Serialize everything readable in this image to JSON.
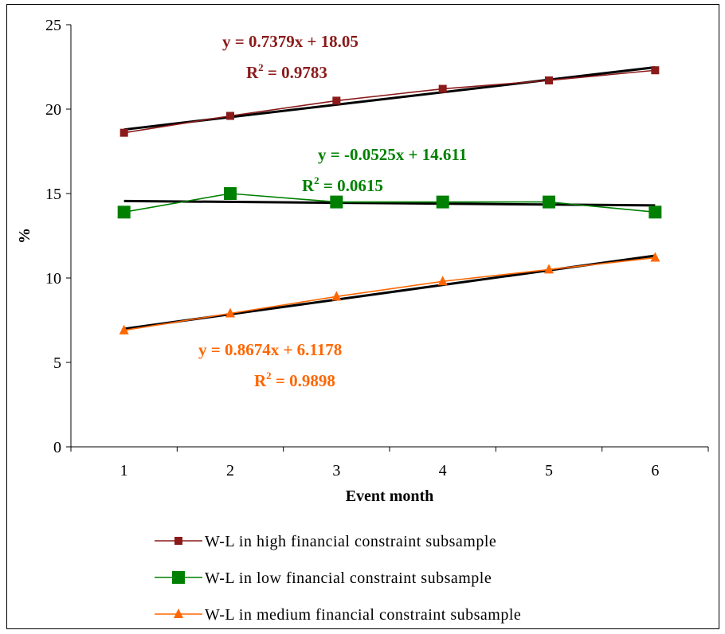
{
  "chart_data": {
    "type": "line",
    "title": "",
    "xlabel": "Event month",
    "ylabel": "%",
    "x": [
      1,
      2,
      3,
      4,
      5,
      6
    ],
    "xlim": [
      0.5,
      6.5
    ],
    "ylim": [
      0,
      25
    ],
    "yticks": [
      0,
      5,
      10,
      15,
      20,
      25
    ],
    "legend_position": "bottom",
    "series": [
      {
        "name": "W-L in high financial constraint subsample",
        "values": [
          18.6,
          19.6,
          20.5,
          21.2,
          21.7,
          22.3
        ],
        "color": "#8B1A1A",
        "marker": "square-small",
        "trendline": {
          "slope": 0.7379,
          "intercept": 18.05
        },
        "equation": "y = 0.7379x + 18.05",
        "r2_prefix": "R",
        "r2_sup": "2",
        "r2_value": " = 0.9783"
      },
      {
        "name": "W-L in low financial constraint subsample",
        "values": [
          13.9,
          15.0,
          14.5,
          14.5,
          14.5,
          13.9
        ],
        "color": "#008000",
        "marker": "square-large",
        "trendline": {
          "slope": -0.0525,
          "intercept": 14.611
        },
        "equation": "y = -0.0525x + 14.611",
        "r2_prefix": "R",
        "r2_sup": "2",
        "r2_value": " = 0.0615"
      },
      {
        "name": "W-L in medium financial constraint subsample",
        "values": [
          6.9,
          7.9,
          8.9,
          9.8,
          10.5,
          11.2
        ],
        "color": "#FF6600",
        "marker": "triangle",
        "trendline": {
          "slope": 0.8674,
          "intercept": 6.1178
        },
        "equation": "y = 0.8674x + 6.1178",
        "r2_prefix": "R",
        "r2_sup": "2",
        "r2_value": " = 0.9898"
      }
    ],
    "trendline_color": "#000000"
  }
}
